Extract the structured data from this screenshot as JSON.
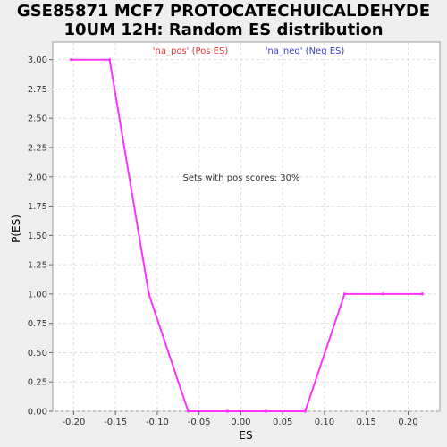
{
  "chart_data": {
    "type": "line",
    "title_lines": [
      "GSE85871 MCF7 PROTOCATECHUICALDEHYDE",
      "10UM 12H: Random ES distribution"
    ],
    "xlabel": "ES",
    "ylabel": "P(ES)",
    "xlim": [
      -0.225,
      0.238
    ],
    "ylim": [
      0,
      3.15
    ],
    "x_ticks": [
      -0.2,
      -0.15,
      -0.1,
      -0.05,
      0.0,
      0.05,
      0.1,
      0.15,
      0.2
    ],
    "x_tick_labels": [
      "-0.20",
      "-0.15",
      "-0.10",
      "-0.05",
      "0.00",
      "0.05",
      "0.10",
      "0.15",
      "0.20"
    ],
    "y_ticks": [
      0,
      0.25,
      0.5,
      0.75,
      1.0,
      1.25,
      1.5,
      1.75,
      2.0,
      2.25,
      2.5,
      2.75,
      3.0
    ],
    "y_tick_labels": [
      "0.00",
      "0.25",
      "0.50",
      "0.75",
      "1.00",
      "1.25",
      "1.50",
      "1.75",
      "2.00",
      "2.25",
      "2.50",
      "2.75",
      "3.00"
    ],
    "grid": true,
    "legend": [
      {
        "label": "'na_pos' (Pos ES)",
        "color": "#e03c3c"
      },
      {
        "label": "'na_neg' (Neg ES)",
        "color": "#3c3cc8"
      }
    ],
    "annotation": "Sets with pos scores: 30%",
    "series": [
      {
        "color": "#ff33ff",
        "x": [
          -0.203,
          -0.157,
          -0.11,
          -0.063,
          -0.016,
          0.03,
          0.077,
          0.124,
          0.17,
          0.217
        ],
        "y": [
          3.0,
          3.0,
          1.0,
          0.0,
          0.0,
          0.0,
          0.0,
          1.0,
          1.0,
          1.0
        ]
      }
    ]
  }
}
